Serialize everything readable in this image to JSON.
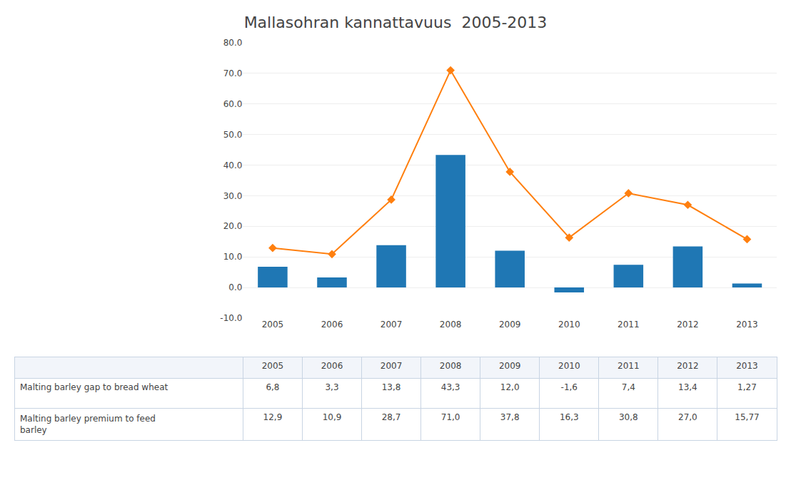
{
  "chart_data": {
    "type": "bar",
    "title": "Mallasohran kannattavuus  2005-2013",
    "categories": [
      "2005",
      "2006",
      "2007",
      "2008",
      "2009",
      "2010",
      "2011",
      "2012",
      "2013"
    ],
    "series": [
      {
        "name": "Malting barley gap to bread wheat",
        "type": "bar",
        "values": [
          6.8,
          3.3,
          13.8,
          43.3,
          12.0,
          -1.6,
          7.4,
          13.4,
          1.27
        ],
        "value_labels": [
          "6,8",
          "3,3",
          "13,8",
          "43,3",
          "12,0",
          "-1,6",
          "7,4",
          "13,4",
          "1,27"
        ]
      },
      {
        "name": "Malting barley premium to feed\nbarley",
        "type": "line",
        "marker": "diamond",
        "line_style": "solid",
        "values": [
          12.9,
          10.9,
          28.7,
          71.0,
          37.8,
          16.3,
          30.8,
          27.0,
          15.77
        ],
        "value_labels": [
          "12,9",
          "10,9",
          "28,7",
          "71,0",
          "37,8",
          "16,3",
          "30,8",
          "27,0",
          "15,77"
        ]
      }
    ],
    "ylim": [
      -10,
      80
    ],
    "yticks": [
      {
        "value": -10,
        "label": "-10.0"
      },
      {
        "value": 0,
        "label": "0.0"
      },
      {
        "value": 10,
        "label": "10.0"
      },
      {
        "value": 20,
        "label": "20.0"
      },
      {
        "value": 30,
        "label": "30.0"
      },
      {
        "value": 40,
        "label": "40.0"
      },
      {
        "value": 50,
        "label": "50.0"
      },
      {
        "value": 60,
        "label": "60.0"
      },
      {
        "value": 70,
        "label": "70.0"
      },
      {
        "value": 80,
        "label": "80.0"
      }
    ],
    "grid": true
  }
}
